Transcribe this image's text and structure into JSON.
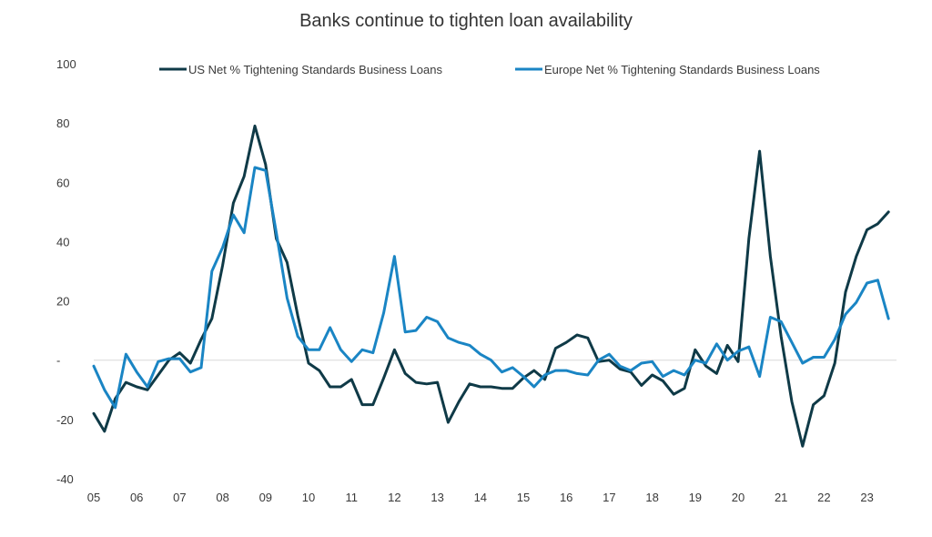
{
  "chart_data": {
    "type": "line",
    "title": "Banks continue to tighten loan availability",
    "xlabel": "",
    "ylabel": "",
    "ylim": [
      -40,
      100
    ],
    "yticks": [
      "100",
      "80",
      "60",
      "40",
      "20",
      "-",
      "-20",
      "-40"
    ],
    "xticks": [
      "05",
      "06",
      "07",
      "08",
      "09",
      "10",
      "11",
      "12",
      "13",
      "14",
      "15",
      "16",
      "17",
      "18",
      "19",
      "20",
      "21",
      "22",
      "23"
    ],
    "grid": false,
    "legend_position": "top",
    "series": [
      {
        "name": "US Net % Tightening Standards Business Loans",
        "color": "#0f3a47",
        "points": [
          [
            2005.0,
            -18
          ],
          [
            2005.25,
            -24
          ],
          [
            2005.5,
            -13
          ],
          [
            2005.75,
            -7.5
          ],
          [
            2006.0,
            -9
          ],
          [
            2006.25,
            -10
          ],
          [
            2006.5,
            -5
          ],
          [
            2006.75,
            0
          ],
          [
            2007.0,
            2.5
          ],
          [
            2007.25,
            -1
          ],
          [
            2007.5,
            7
          ],
          [
            2007.75,
            14
          ],
          [
            2008.0,
            32
          ],
          [
            2008.25,
            53
          ],
          [
            2008.5,
            62
          ],
          [
            2008.75,
            79
          ],
          [
            2009.0,
            66
          ],
          [
            2009.25,
            41
          ],
          [
            2009.5,
            33
          ],
          [
            2009.75,
            15
          ],
          [
            2010.0,
            -1
          ],
          [
            2010.25,
            -3.5
          ],
          [
            2010.5,
            -9
          ],
          [
            2010.75,
            -9
          ],
          [
            2011.0,
            -6.5
          ],
          [
            2011.25,
            -15
          ],
          [
            2011.5,
            -15
          ],
          [
            2011.75,
            -6
          ],
          [
            2012.0,
            3.5
          ],
          [
            2012.25,
            -4.5
          ],
          [
            2012.5,
            -7.5
          ],
          [
            2012.75,
            -8
          ],
          [
            2013.0,
            -7.5
          ],
          [
            2013.25,
            -21
          ],
          [
            2013.5,
            -14
          ],
          [
            2013.75,
            -8
          ],
          [
            2014.0,
            -9
          ],
          [
            2014.25,
            -9
          ],
          [
            2014.5,
            -9.5
          ],
          [
            2014.75,
            -9.5
          ],
          [
            2015.0,
            -6
          ],
          [
            2015.25,
            -3.5
          ],
          [
            2015.5,
            -6.5
          ],
          [
            2015.75,
            4
          ],
          [
            2016.0,
            6
          ],
          [
            2016.25,
            8.5
          ],
          [
            2016.5,
            7.5
          ],
          [
            2016.75,
            -0.5
          ],
          [
            2017.0,
            0
          ],
          [
            2017.25,
            -3
          ],
          [
            2017.5,
            -4
          ],
          [
            2017.75,
            -8.5
          ],
          [
            2018.0,
            -5
          ],
          [
            2018.25,
            -7
          ],
          [
            2018.5,
            -11.5
          ],
          [
            2018.75,
            -9.5
          ],
          [
            2019.0,
            3.5
          ],
          [
            2019.25,
            -2
          ],
          [
            2019.5,
            -4.5
          ],
          [
            2019.75,
            5
          ],
          [
            2020.0,
            -0.5
          ],
          [
            2020.25,
            41
          ],
          [
            2020.5,
            70.5
          ],
          [
            2020.75,
            35
          ],
          [
            2021.0,
            8
          ],
          [
            2021.25,
            -14
          ],
          [
            2021.5,
            -29
          ],
          [
            2021.75,
            -15
          ],
          [
            2022.0,
            -12
          ],
          [
            2022.25,
            -1
          ],
          [
            2022.5,
            23
          ],
          [
            2022.75,
            35
          ],
          [
            2023.0,
            44
          ],
          [
            2023.25,
            46
          ],
          [
            2023.5,
            50
          ]
        ]
      },
      {
        "name": "Europe Net % Tightening Standards Business Loans",
        "color": "#1a85c4",
        "points": [
          [
            2005.0,
            -2
          ],
          [
            2005.25,
            -10
          ],
          [
            2005.5,
            -16
          ],
          [
            2005.75,
            2
          ],
          [
            2006.0,
            -4
          ],
          [
            2006.25,
            -9
          ],
          [
            2006.5,
            -0.5
          ],
          [
            2006.75,
            0.5
          ],
          [
            2007.0,
            0.5
          ],
          [
            2007.25,
            -4
          ],
          [
            2007.5,
            -2.5
          ],
          [
            2007.75,
            30
          ],
          [
            2008.0,
            38
          ],
          [
            2008.25,
            49
          ],
          [
            2008.5,
            43
          ],
          [
            2008.75,
            65
          ],
          [
            2009.0,
            64
          ],
          [
            2009.25,
            43
          ],
          [
            2009.5,
            21
          ],
          [
            2009.75,
            8
          ],
          [
            2010.0,
            3.5
          ],
          [
            2010.25,
            3.5
          ],
          [
            2010.5,
            11
          ],
          [
            2010.75,
            3.5
          ],
          [
            2011.0,
            -0.5
          ],
          [
            2011.25,
            3.5
          ],
          [
            2011.5,
            2.5
          ],
          [
            2011.75,
            16
          ],
          [
            2012.0,
            35
          ],
          [
            2012.25,
            9.5
          ],
          [
            2012.5,
            10
          ],
          [
            2012.75,
            14.5
          ],
          [
            2013.0,
            13
          ],
          [
            2013.25,
            7.5
          ],
          [
            2013.5,
            6
          ],
          [
            2013.75,
            5
          ],
          [
            2014.0,
            2
          ],
          [
            2014.25,
            0
          ],
          [
            2014.5,
            -4
          ],
          [
            2014.75,
            -2.5
          ],
          [
            2015.0,
            -5.5
          ],
          [
            2015.25,
            -9
          ],
          [
            2015.5,
            -5
          ],
          [
            2015.75,
            -3.5
          ],
          [
            2016.0,
            -3.5
          ],
          [
            2016.25,
            -4.5
          ],
          [
            2016.5,
            -5
          ],
          [
            2016.75,
            0
          ],
          [
            2017.0,
            2
          ],
          [
            2017.25,
            -2
          ],
          [
            2017.5,
            -3.5
          ],
          [
            2017.75,
            -1
          ],
          [
            2018.0,
            -0.5
          ],
          [
            2018.25,
            -5.5
          ],
          [
            2018.5,
            -3.5
          ],
          [
            2018.75,
            -5
          ],
          [
            2019.0,
            0
          ],
          [
            2019.25,
            -1
          ],
          [
            2019.5,
            5.5
          ],
          [
            2019.75,
            0
          ],
          [
            2020.0,
            3
          ],
          [
            2020.25,
            4.5
          ],
          [
            2020.5,
            -5.5
          ],
          [
            2020.75,
            14.5
          ],
          [
            2021.0,
            13
          ],
          [
            2021.25,
            6
          ],
          [
            2021.5,
            -1
          ],
          [
            2021.75,
            1
          ],
          [
            2022.0,
            1
          ],
          [
            2022.25,
            7
          ],
          [
            2022.5,
            15.5
          ],
          [
            2022.75,
            19.5
          ],
          [
            2023.0,
            26
          ],
          [
            2023.25,
            27
          ],
          [
            2023.5,
            14
          ]
        ]
      }
    ]
  }
}
